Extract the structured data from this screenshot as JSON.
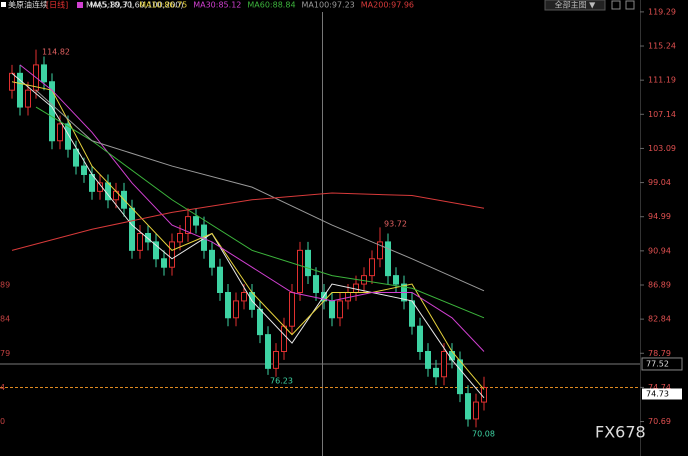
{
  "chart_data": {
    "type": "candlestick",
    "symbol": "美原油连续",
    "period": "[日线]",
    "ma_label": "MA(5,10,30,60,100,200)",
    "menu": "全部主图 ▼",
    "watermark": "FX678",
    "up_color": "#e03030",
    "down_color": "#3ed3a3",
    "ylim": [
      68.5,
      120.7
    ],
    "yticks": [
      119.29,
      115.24,
      111.19,
      107.14,
      103.09,
      99.04,
      94.99,
      90.94,
      86.89,
      82.84,
      78.79,
      74.74,
      70.69
    ],
    "left_axis_fragments": [
      "89",
      "84",
      "79",
      "4",
      "0"
    ],
    "crosshair_price": 77.52,
    "last_price": 74.73,
    "open": [
      110,
      112,
      108,
      110,
      113,
      111,
      104,
      106,
      103,
      101,
      100,
      98,
      99,
      97,
      98,
      96,
      91,
      93,
      92,
      90,
      89,
      92,
      93,
      95,
      94,
      91,
      89,
      86,
      83,
      85,
      86,
      84,
      81,
      77,
      79,
      82,
      86,
      91,
      88,
      86,
      85,
      83,
      85,
      86,
      87,
      88,
      90,
      92,
      88,
      87,
      85,
      82,
      79,
      77,
      76,
      79,
      78,
      74,
      71,
      73
    ],
    "high": [
      113,
      113,
      111,
      114.82,
      114,
      112,
      107,
      107,
      104,
      102,
      101,
      100,
      100,
      99,
      99,
      97,
      94,
      94,
      93,
      91,
      93,
      94,
      96,
      96,
      95,
      92,
      90,
      87,
      86,
      87,
      87,
      85,
      82,
      80,
      83,
      87,
      92,
      92,
      89,
      87,
      86,
      86,
      87,
      88,
      89,
      91,
      93.72,
      93,
      89,
      88,
      86,
      83,
      80,
      78,
      80,
      80,
      79,
      75,
      74,
      76
    ],
    "low": [
      109,
      107,
      107,
      109,
      110,
      103,
      103,
      102,
      100,
      99,
      97,
      97,
      96,
      96,
      95,
      90,
      90,
      91,
      89,
      88,
      88,
      91,
      92,
      93,
      90,
      88,
      85,
      82,
      82,
      84,
      83,
      80,
      76.23,
      76,
      78,
      81,
      85,
      87,
      85,
      84,
      82,
      82,
      84,
      85,
      86,
      87,
      89,
      87,
      86,
      84,
      81,
      78,
      76,
      75,
      75,
      77,
      73,
      70.08,
      70,
      72
    ],
    "close": [
      112,
      108,
      110,
      113,
      111,
      104,
      106,
      103,
      101,
      100,
      98,
      99,
      97,
      98,
      96,
      91,
      93,
      92,
      90,
      89,
      92,
      93,
      95,
      94,
      91,
      89,
      86,
      83,
      85,
      86,
      84,
      81,
      77,
      79,
      82,
      86,
      91,
      88,
      86,
      85,
      83,
      85,
      86,
      87,
      88,
      90,
      92,
      88,
      87,
      85,
      82,
      79,
      77,
      76,
      79,
      78,
      74,
      71,
      73,
      74.73
    ],
    "series": [
      {
        "name": "MA5:89.71",
        "color": "#e8e8e8",
        "x": [
          0,
          5,
          10,
          15,
          20,
          25,
          30,
          35,
          40,
          45,
          50,
          55,
          59
        ],
        "values": [
          112,
          108,
          100,
          94,
          90,
          93,
          85,
          80,
          87,
          86,
          85,
          78,
          73.5
        ]
      },
      {
        "name": "MA10:86.75",
        "color": "#e6d23c",
        "x": [
          0,
          5,
          10,
          15,
          20,
          25,
          30,
          35,
          40,
          45,
          50,
          55,
          59
        ],
        "values": [
          111,
          110,
          101,
          96,
          91,
          93,
          86,
          81,
          86,
          86,
          87,
          79,
          74.5
        ]
      },
      {
        "name": "MA30:85.12",
        "color": "#d040d0",
        "x": [
          1,
          5,
          10,
          15,
          20,
          25,
          30,
          35,
          40,
          45,
          50,
          55,
          59
        ],
        "values": [
          113,
          110,
          105,
          99,
          94,
          92,
          89,
          86,
          85,
          86,
          86,
          83,
          79
        ]
      },
      {
        "name": "MA60:88.84",
        "color": "#3cb43c",
        "x": [
          3,
          10,
          20,
          30,
          40,
          50,
          59
        ],
        "values": [
          108,
          104,
          97,
          91,
          88,
          86.5,
          83
        ]
      },
      {
        "name": "MA100:97.23",
        "color": "#9a9a9a",
        "x": [
          3,
          10,
          20,
          30,
          40,
          50,
          59
        ],
        "values": [
          110,
          104,
          101,
          98.5,
          94,
          90,
          86.2
        ]
      },
      {
        "name": "MA200:97.96",
        "color": "#d83a3a",
        "x": [
          0,
          10,
          20,
          30,
          40,
          50,
          59
        ],
        "values": [
          91,
          93.5,
          95.5,
          97,
          97.8,
          97.5,
          96
        ]
      }
    ]
  }
}
